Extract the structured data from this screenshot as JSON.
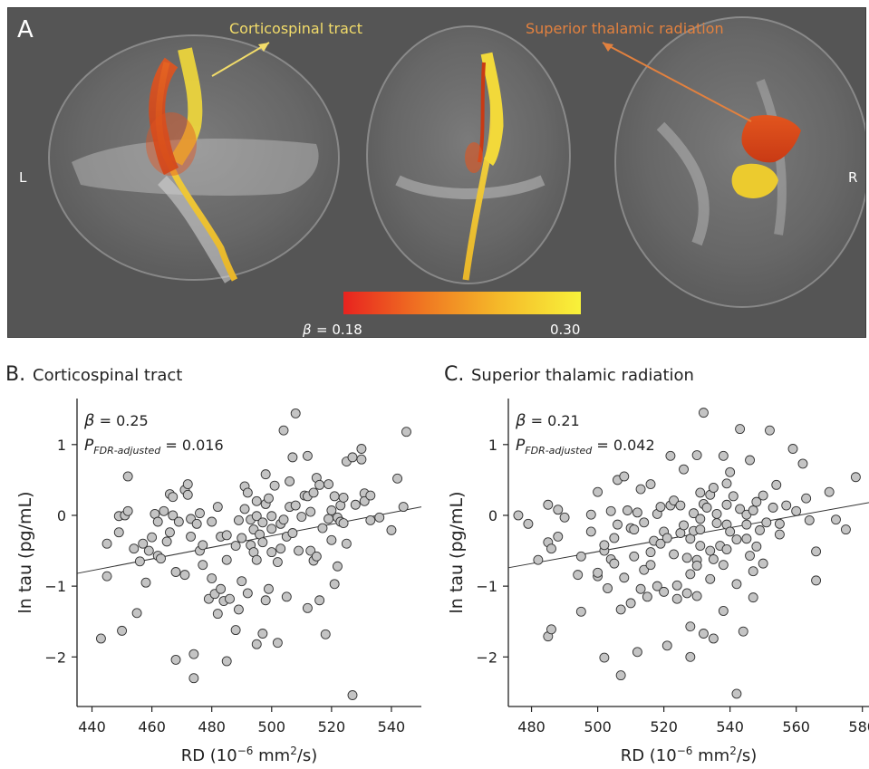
{
  "panel_a": {
    "letter": "A",
    "left_label": "L",
    "right_label": "R",
    "annotation_cst": "Corticospinal tract",
    "annotation_str": "Superior thalamic radiation",
    "colorbar": {
      "beta_symbol": "β",
      "min_label": "= 0.18",
      "max_label": "0.30",
      "colors": [
        "#e8231f",
        "#f07a22",
        "#f5b829",
        "#f8f23a"
      ]
    },
    "colors": {
      "background": "#555555",
      "cst_annotation": "#f2dc6a",
      "str_annotation": "#e2813f"
    }
  },
  "chart_data": [
    {
      "type": "scatter",
      "letter": "B.",
      "title": "Corticospinal tract",
      "xlabel": "RD (10",
      "xlabel_exp": "−6",
      "xlabel_tail": " mm",
      "xlabel_exp2": "2",
      "xlabel_end": "/s)",
      "ylabel": "ln tau (pg/mL)",
      "xlim": [
        435,
        550
      ],
      "ylim": [
        -2.7,
        1.65
      ],
      "xticks": [
        440,
        460,
        480,
        500,
        520,
        540
      ],
      "yticks": [
        -2,
        -1,
        0,
        1
      ],
      "ytick_labels": [
        "−2",
        "−1",
        "0",
        "1"
      ],
      "beta_text": "= 0.25",
      "p_text": "= 0.016",
      "beta_symbol": "β",
      "p_symbol": "P",
      "p_sub": "FDR-adjusted",
      "fit": {
        "x": [
          435,
          550
        ],
        "y": [
          -0.82,
          0.12
        ]
      },
      "point_color": "#c4c4c4",
      "points": [
        [
          443,
          -1.74
        ],
        [
          445,
          -0.4
        ],
        [
          445,
          -0.86
        ],
        [
          449,
          -0.24
        ],
        [
          449,
          -0.01
        ],
        [
          450,
          -1.63
        ],
        [
          451,
          0.0
        ],
        [
          452,
          0.55
        ],
        [
          452,
          0.06
        ],
        [
          454,
          -0.47
        ],
        [
          455,
          -1.38
        ],
        [
          456,
          -0.65
        ],
        [
          457,
          -0.4
        ],
        [
          458,
          -0.95
        ],
        [
          459,
          -0.5
        ],
        [
          460,
          -0.31
        ],
        [
          461,
          0.02
        ],
        [
          462,
          -0.09
        ],
        [
          462,
          -0.57
        ],
        [
          463,
          -0.61
        ],
        [
          464,
          0.06
        ],
        [
          465,
          -0.37
        ],
        [
          466,
          0.3
        ],
        [
          466,
          -0.24
        ],
        [
          467,
          0.26
        ],
        [
          467,
          0.0
        ],
        [
          468,
          -2.04
        ],
        [
          468,
          -0.8
        ],
        [
          469,
          -0.09
        ],
        [
          471,
          -0.84
        ],
        [
          471,
          0.36
        ],
        [
          472,
          0.29
        ],
        [
          472,
          0.44
        ],
        [
          473,
          -0.3
        ],
        [
          473,
          -0.05
        ],
        [
          474,
          -2.3
        ],
        [
          474,
          -1.96
        ],
        [
          475,
          -0.12
        ],
        [
          476,
          -0.5
        ],
        [
          476,
          0.03
        ],
        [
          477,
          -0.42
        ],
        [
          477,
          -0.7
        ],
        [
          479,
          -1.18
        ],
        [
          480,
          -0.09
        ],
        [
          480,
          -0.89
        ],
        [
          481,
          -1.11
        ],
        [
          482,
          0.12
        ],
        [
          482,
          -1.39
        ],
        [
          483,
          -0.3
        ],
        [
          483,
          -1.04
        ],
        [
          484,
          -1.21
        ],
        [
          485,
          -0.63
        ],
        [
          485,
          -0.28
        ],
        [
          485,
          -2.06
        ],
        [
          486,
          -1.18
        ],
        [
          488,
          -1.62
        ],
        [
          488,
          -0.43
        ],
        [
          489,
          -0.07
        ],
        [
          489,
          -1.33
        ],
        [
          490,
          -0.93
        ],
        [
          490,
          -0.32
        ],
        [
          491,
          0.41
        ],
        [
          491,
          0.09
        ],
        [
          492,
          -1.1
        ],
        [
          492,
          0.32
        ],
        [
          493,
          -0.06
        ],
        [
          493,
          -0.42
        ],
        [
          494,
          -0.2
        ],
        [
          494,
          -0.52
        ],
        [
          495,
          0.2
        ],
        [
          495,
          -1.82
        ],
        [
          495,
          -0.63
        ],
        [
          495,
          -0.01
        ],
        [
          496,
          -0.27
        ],
        [
          497,
          -1.67
        ],
        [
          497,
          -0.38
        ],
        [
          497,
          -0.1
        ],
        [
          498,
          0.58
        ],
        [
          498,
          0.16
        ],
        [
          498,
          -1.2
        ],
        [
          499,
          -1.04
        ],
        [
          499,
          0.24
        ],
        [
          500,
          -0.52
        ],
        [
          500,
          -0.19
        ],
        [
          500,
          -0.01
        ],
        [
          501,
          0.42
        ],
        [
          502,
          -1.8
        ],
        [
          502,
          -0.66
        ],
        [
          503,
          -0.12
        ],
        [
          503,
          -0.47
        ],
        [
          504,
          1.2
        ],
        [
          504,
          -0.06
        ],
        [
          505,
          -0.3
        ],
        [
          505,
          -1.15
        ],
        [
          506,
          0.12
        ],
        [
          506,
          0.48
        ],
        [
          507,
          0.82
        ],
        [
          507,
          -0.25
        ],
        [
          508,
          1.44
        ],
        [
          508,
          0.14
        ],
        [
          509,
          -0.5
        ],
        [
          510,
          -0.02
        ],
        [
          511,
          0.28
        ],
        [
          512,
          -1.31
        ],
        [
          512,
          0.84
        ],
        [
          512,
          0.27
        ],
        [
          513,
          -0.5
        ],
        [
          513,
          0.05
        ],
        [
          514,
          0.32
        ],
        [
          514,
          -0.64
        ],
        [
          515,
          0.53
        ],
        [
          515,
          -0.58
        ],
        [
          516,
          -1.2
        ],
        [
          516,
          0.43
        ],
        [
          517,
          -0.18
        ],
        [
          518,
          -1.68
        ],
        [
          519,
          -0.05
        ],
        [
          519,
          0.44
        ],
        [
          520,
          -0.35
        ],
        [
          520,
          0.07
        ],
        [
          521,
          -0.97
        ],
        [
          521,
          0.27
        ],
        [
          522,
          -0.72
        ],
        [
          522,
          -0.03
        ],
        [
          523,
          0.14
        ],
        [
          523,
          -0.09
        ],
        [
          524,
          0.25
        ],
        [
          524,
          -0.11
        ],
        [
          525,
          0.76
        ],
        [
          525,
          -0.4
        ],
        [
          527,
          0.82
        ],
        [
          527,
          -2.54
        ],
        [
          528,
          0.15
        ],
        [
          530,
          0.79
        ],
        [
          530,
          0.94
        ],
        [
          531,
          0.31
        ],
        [
          531,
          0.2
        ],
        [
          533,
          -0.07
        ],
        [
          533,
          0.28
        ],
        [
          536,
          -0.03
        ],
        [
          540,
          -0.21
        ],
        [
          542,
          0.52
        ],
        [
          544,
          0.12
        ],
        [
          545,
          1.18
        ]
      ]
    },
    {
      "type": "scatter",
      "letter": "C.",
      "title": "Superior thalamic radiation",
      "xlabel": "RD (10",
      "xlabel_exp": "−6",
      "xlabel_tail": " mm",
      "xlabel_exp2": "2",
      "xlabel_end": "/s)",
      "ylabel": "ln tau (pg/mL)",
      "xlim": [
        473,
        582
      ],
      "ylim": [
        -2.7,
        1.65
      ],
      "xticks": [
        480,
        500,
        520,
        540,
        560,
        580
      ],
      "yticks": [
        -2,
        -1,
        0,
        1
      ],
      "ytick_labels": [
        "−2",
        "−1",
        "0",
        "1"
      ],
      "beta_text": "= 0.21",
      "p_text": "= 0.042",
      "beta_symbol": "β",
      "p_symbol": "P",
      "p_sub": "FDR-adjusted",
      "fit": {
        "x": [
          473,
          582
        ],
        "y": [
          -0.74,
          0.18
        ]
      },
      "point_color": "#c4c4c4",
      "points": [
        [
          476,
          0.0
        ],
        [
          479,
          -0.12
        ],
        [
          482,
          -0.63
        ],
        [
          485,
          -1.71
        ],
        [
          485,
          -0.38
        ],
        [
          485,
          0.15
        ],
        [
          486,
          -1.61
        ],
        [
          486,
          -0.47
        ],
        [
          488,
          0.08
        ],
        [
          488,
          -0.3
        ],
        [
          490,
          -0.03
        ],
        [
          494,
          -0.84
        ],
        [
          495,
          -1.36
        ],
        [
          495,
          -0.58
        ],
        [
          498,
          -0.23
        ],
        [
          498,
          0.01
        ],
        [
          500,
          -0.86
        ],
        [
          500,
          0.33
        ],
        [
          500,
          -0.81
        ],
        [
          502,
          -2.01
        ],
        [
          502,
          -0.5
        ],
        [
          502,
          -0.42
        ],
        [
          503,
          -1.03
        ],
        [
          504,
          0.06
        ],
        [
          504,
          -0.62
        ],
        [
          505,
          -0.32
        ],
        [
          505,
          -0.68
        ],
        [
          506,
          -0.13
        ],
        [
          506,
          0.5
        ],
        [
          507,
          -2.26
        ],
        [
          507,
          -1.33
        ],
        [
          508,
          -0.88
        ],
        [
          508,
          0.55
        ],
        [
          509,
          0.07
        ],
        [
          510,
          -0.18
        ],
        [
          510,
          -1.24
        ],
        [
          511,
          -0.2
        ],
        [
          511,
          -0.58
        ],
        [
          512,
          -1.93
        ],
        [
          512,
          0.04
        ],
        [
          513,
          -1.04
        ],
        [
          513,
          0.37
        ],
        [
          514,
          -0.1
        ],
        [
          514,
          -0.77
        ],
        [
          515,
          -1.15
        ],
        [
          516,
          -0.52
        ],
        [
          516,
          -0.7
        ],
        [
          516,
          0.44
        ],
        [
          517,
          -0.36
        ],
        [
          518,
          -1.0
        ],
        [
          518,
          0.02
        ],
        [
          519,
          -0.4
        ],
        [
          519,
          0.12
        ],
        [
          520,
          -1.08
        ],
        [
          520,
          -0.23
        ],
        [
          521,
          -1.84
        ],
        [
          521,
          -0.32
        ],
        [
          522,
          0.84
        ],
        [
          522,
          0.14
        ],
        [
          523,
          -0.55
        ],
        [
          523,
          0.21
        ],
        [
          524,
          -0.99
        ],
        [
          524,
          -1.18
        ],
        [
          525,
          0.14
        ],
        [
          525,
          -0.25
        ],
        [
          526,
          0.65
        ],
        [
          526,
          -0.14
        ],
        [
          527,
          -0.6
        ],
        [
          527,
          -1.1
        ],
        [
          528,
          -0.83
        ],
        [
          528,
          -1.57
        ],
        [
          528,
          -0.33
        ],
        [
          528,
          -2.0
        ],
        [
          529,
          -0.22
        ],
        [
          529,
          0.03
        ],
        [
          530,
          0.85
        ],
        [
          530,
          -0.63
        ],
        [
          530,
          -0.71
        ],
        [
          530,
          -1.14
        ],
        [
          531,
          0.32
        ],
        [
          531,
          -0.43
        ],
        [
          531,
          -0.2
        ],
        [
          531,
          -0.05
        ],
        [
          532,
          -1.67
        ],
        [
          532,
          0.16
        ],
        [
          532,
          1.45
        ],
        [
          533,
          0.11
        ],
        [
          534,
          -0.9
        ],
        [
          534,
          0.29
        ],
        [
          534,
          -0.5
        ],
        [
          535,
          0.39
        ],
        [
          535,
          -0.62
        ],
        [
          535,
          -1.74
        ],
        [
          536,
          0.02
        ],
        [
          536,
          -0.11
        ],
        [
          537,
          -0.43
        ],
        [
          538,
          -0.7
        ],
        [
          538,
          0.84
        ],
        [
          538,
          -1.35
        ],
        [
          539,
          0.45
        ],
        [
          539,
          0.15
        ],
        [
          539,
          -0.13
        ],
        [
          539,
          -0.48
        ],
        [
          540,
          0.61
        ],
        [
          540,
          -0.23
        ],
        [
          541,
          0.27
        ],
        [
          542,
          -0.34
        ],
        [
          542,
          -0.97
        ],
        [
          542,
          -2.52
        ],
        [
          543,
          1.22
        ],
        [
          543,
          0.09
        ],
        [
          544,
          -1.64
        ],
        [
          545,
          0.01
        ],
        [
          545,
          -0.13
        ],
        [
          545,
          -0.33
        ],
        [
          546,
          0.78
        ],
        [
          546,
          -0.57
        ],
        [
          547,
          0.07
        ],
        [
          547,
          -0.79
        ],
        [
          547,
          -1.16
        ],
        [
          548,
          -0.44
        ],
        [
          548,
          0.19
        ],
        [
          549,
          -0.21
        ],
        [
          550,
          0.28
        ],
        [
          550,
          -0.68
        ],
        [
          551,
          -0.1
        ],
        [
          552,
          1.2
        ],
        [
          553,
          0.11
        ],
        [
          554,
          0.43
        ],
        [
          555,
          -0.12
        ],
        [
          555,
          -0.27
        ],
        [
          557,
          0.14
        ],
        [
          559,
          0.94
        ],
        [
          560,
          0.06
        ],
        [
          562,
          0.73
        ],
        [
          563,
          0.24
        ],
        [
          564,
          -0.07
        ],
        [
          566,
          -0.92
        ],
        [
          566,
          -0.51
        ],
        [
          570,
          0.33
        ],
        [
          572,
          -0.06
        ],
        [
          575,
          -0.2
        ],
        [
          578,
          0.54
        ]
      ]
    }
  ]
}
